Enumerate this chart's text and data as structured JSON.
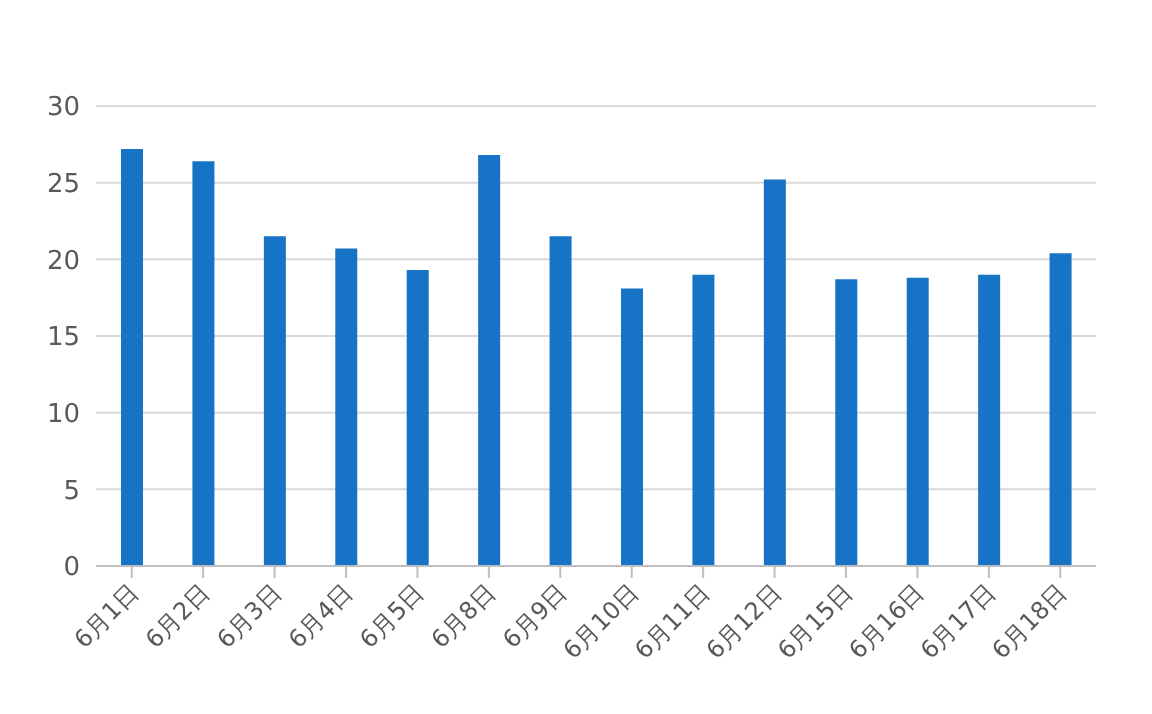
{
  "chart_data": {
    "type": "bar",
    "categories": [
      "6月1日",
      "6月2日",
      "6月3日",
      "6月4日",
      "6月5日",
      "6月8日",
      "6月9日",
      "6月10日",
      "6月11日",
      "6月12日",
      "6月15日",
      "6月16日",
      "6月17日",
      "6月18日"
    ],
    "values": [
      27.2,
      26.4,
      21.5,
      20.7,
      19.3,
      26.8,
      21.5,
      18.1,
      19.0,
      25.2,
      18.7,
      18.8,
      19.0,
      20.4
    ],
    "color": "#1673c5",
    "ylim": [
      0,
      30
    ],
    "yticks": [
      0,
      5,
      10,
      15,
      20,
      25,
      30
    ],
    "grid": "y"
  }
}
